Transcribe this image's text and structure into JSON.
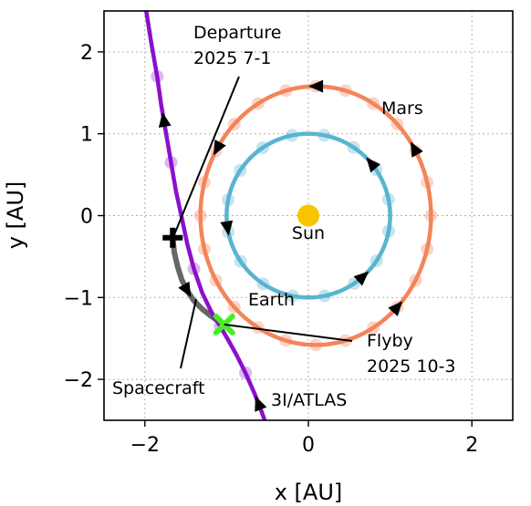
{
  "chart_data": {
    "type": "line",
    "xlabel": "x [AU]",
    "ylabel": "y [AU]",
    "xlim": [
      -2.5,
      2.5
    ],
    "ylim": [
      -2.5,
      2.5
    ],
    "xticks": [
      -2,
      0,
      2
    ],
    "yticks": [
      -2,
      -1,
      0,
      1,
      2
    ],
    "xtick_labels": [
      "−2",
      "0",
      "2"
    ],
    "ytick_labels": [
      "−2",
      "−1",
      "0",
      "1",
      "2"
    ],
    "grid": true,
    "colors": {
      "earth": "#5ab4d0",
      "mars": "#f4845a",
      "atlas": "#8a10cc",
      "spacecraft": "#666666",
      "sun": "#f7c400",
      "flyby": "#44ee22",
      "departure": "#000000"
    },
    "sun": {
      "x": 0.0,
      "y": 0.0,
      "label": "Sun"
    },
    "earth_orbit": {
      "label": "Earth",
      "radius": 1.0
    },
    "mars_orbit": {
      "label": "Mars",
      "center": [
        0.09,
        0.0
      ],
      "semi_axis_x": 1.41,
      "semi_axis_y": 1.58
    },
    "atlas_trajectory": {
      "label": "3I/ATLAS",
      "x": [
        -2.0,
        -1.92,
        -1.85,
        -1.8,
        -1.74,
        -1.68,
        -1.62,
        -1.55,
        -1.48,
        -1.4,
        -1.3,
        -1.19,
        -1.08,
        -0.98,
        -0.88,
        -0.77,
        -0.66,
        -0.57,
        -0.5
      ],
      "y": [
        2.6,
        2.1,
        1.7,
        1.35,
        1.0,
        0.65,
        0.3,
        -0.02,
        -0.35,
        -0.65,
        -0.94,
        -1.17,
        -1.35,
        -1.52,
        -1.7,
        -1.92,
        -2.17,
        -2.4,
        -2.6
      ]
    },
    "spacecraft_trajectory": {
      "label": "Spacecraft",
      "x": [
        -1.66,
        -1.64,
        -1.6,
        -1.55,
        -1.48,
        -1.4,
        -1.3,
        -1.2,
        -1.1,
        -1.03
      ],
      "y": [
        -0.27,
        -0.45,
        -0.62,
        -0.78,
        -0.92,
        -1.04,
        -1.14,
        -1.22,
        -1.29,
        -1.33
      ]
    },
    "departure": {
      "x": -1.66,
      "y": -0.27,
      "label_line1": "Departure",
      "label_line2": "2025 7-1"
    },
    "flyby": {
      "x": -1.03,
      "y": -1.33,
      "label_line1": "Flyby",
      "label_line2": "2025 10-3"
    }
  }
}
